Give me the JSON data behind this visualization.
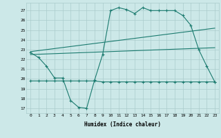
{
  "title": "",
  "xlabel": "Humidex (Indice chaleur)",
  "background_color": "#cce8e8",
  "grid_color": "#aacccc",
  "line_color": "#1a7a6e",
  "xlim": [
    -0.5,
    23.5
  ],
  "ylim": [
    16.5,
    27.8
  ],
  "yticks": [
    17,
    18,
    19,
    20,
    21,
    22,
    23,
    24,
    25,
    26,
    27
  ],
  "xticks": [
    0,
    1,
    2,
    3,
    4,
    5,
    6,
    7,
    8,
    9,
    10,
    11,
    12,
    13,
    14,
    15,
    16,
    17,
    18,
    19,
    20,
    21,
    22,
    23
  ],
  "line1_x": [
    0,
    1,
    2,
    3,
    4,
    5,
    6,
    7,
    8,
    9,
    10,
    11,
    12,
    13,
    14,
    15,
    16,
    17,
    18,
    19,
    20,
    21,
    22,
    23
  ],
  "line1_y": [
    22.7,
    22.2,
    21.3,
    20.1,
    20.1,
    17.8,
    17.1,
    17.0,
    19.9,
    22.5,
    27.0,
    27.3,
    27.1,
    26.7,
    27.3,
    27.0,
    27.0,
    27.0,
    27.0,
    26.5,
    25.5,
    23.0,
    21.3,
    19.7
  ],
  "line2_x": [
    0,
    23
  ],
  "line2_y": [
    22.8,
    25.2
  ],
  "line3_x": [
    0,
    23
  ],
  "line3_y": [
    22.5,
    23.2
  ],
  "line4_x": [
    0,
    1,
    2,
    3,
    4,
    5,
    6,
    7,
    8,
    9,
    10,
    11,
    12,
    13,
    14,
    15,
    16,
    17,
    18,
    19,
    20,
    21,
    22,
    23
  ],
  "line4_y": [
    19.8,
    19.8,
    19.8,
    19.8,
    19.8,
    19.8,
    19.8,
    19.8,
    19.8,
    19.7,
    19.7,
    19.7,
    19.7,
    19.7,
    19.7,
    19.7,
    19.7,
    19.7,
    19.7,
    19.7,
    19.7,
    19.7,
    19.7,
    19.7
  ]
}
